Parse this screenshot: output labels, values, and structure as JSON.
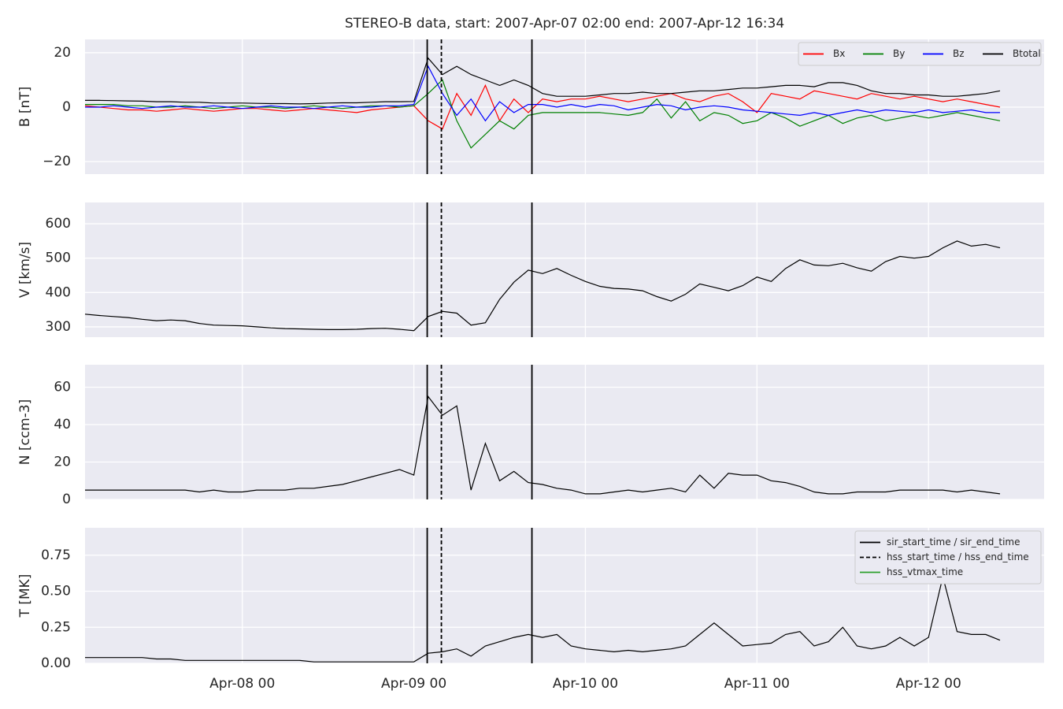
{
  "chart_data": [
    {
      "type": "line",
      "title": "STEREO-B data, start: 2007-Apr-07 02:00  end: 2007-Apr-12 16:34",
      "ylabel": "B [nT]",
      "legend": "upper right",
      "legend_columns": 4,
      "x": [
        "2007-04-07T02:00",
        "2007-04-07T04:00",
        "2007-04-07T06:00",
        "2007-04-07T08:00",
        "2007-04-07T10:00",
        "2007-04-07T12:00",
        "2007-04-07T14:00",
        "2007-04-07T16:00",
        "2007-04-07T18:00",
        "2007-04-07T20:00",
        "2007-04-07T22:00",
        "2007-04-08T00:00",
        "2007-04-08T02:00",
        "2007-04-08T04:00",
        "2007-04-08T06:00",
        "2007-04-08T08:00",
        "2007-04-08T10:00",
        "2007-04-08T12:00",
        "2007-04-08T14:00",
        "2007-04-08T16:00",
        "2007-04-08T18:00",
        "2007-04-08T20:00",
        "2007-04-08T22:00",
        "2007-04-09T00:00",
        "2007-04-09T02:00",
        "2007-04-09T04:00",
        "2007-04-09T06:00",
        "2007-04-09T08:00",
        "2007-04-09T10:00",
        "2007-04-09T12:00",
        "2007-04-09T14:00",
        "2007-04-09T16:00",
        "2007-04-09T18:00",
        "2007-04-09T20:00",
        "2007-04-09T22:00",
        "2007-04-10T00:00",
        "2007-04-10T02:00",
        "2007-04-10T04:00",
        "2007-04-10T06:00",
        "2007-04-10T08:00",
        "2007-04-10T10:00",
        "2007-04-10T12:00",
        "2007-04-10T14:00",
        "2007-04-10T16:00",
        "2007-04-10T18:00",
        "2007-04-10T20:00",
        "2007-04-10T22:00",
        "2007-04-11T00:00",
        "2007-04-11T02:00",
        "2007-04-11T04:00",
        "2007-04-11T06:00",
        "2007-04-11T08:00",
        "2007-04-11T10:00",
        "2007-04-11T12:00",
        "2007-04-11T14:00",
        "2007-04-11T16:00",
        "2007-04-11T18:00",
        "2007-04-11T20:00",
        "2007-04-11T22:00",
        "2007-04-12T00:00",
        "2007-04-12T02:00",
        "2007-04-12T04:00",
        "2007-04-12T06:00",
        "2007-04-12T08:00",
        "2007-04-12T10:00"
      ],
      "series": [
        {
          "name": "Bx",
          "color": "#ff0000",
          "values": [
            0.5,
            0,
            -0.5,
            -1,
            -1,
            -1.5,
            -1,
            -0.5,
            -1,
            -1.5,
            -1,
            -0.5,
            -0.5,
            -1,
            -1.5,
            -1,
            -0.5,
            -1,
            -1.5,
            -2,
            -1,
            -0.5,
            0,
            0.5,
            -5,
            -8,
            5,
            -3,
            8,
            -5,
            3,
            -2,
            3,
            2,
            3,
            3,
            4,
            3,
            2,
            3,
            4,
            5,
            3,
            2,
            4,
            5,
            2,
            -2,
            5,
            4,
            3,
            6,
            5,
            4,
            3,
            5,
            4,
            3,
            4,
            3,
            2,
            3,
            2,
            1,
            0
          ]
        },
        {
          "name": "By",
          "color": "#008000",
          "values": [
            1,
            1,
            1,
            0.5,
            0.5,
            0,
            0,
            0.5,
            0,
            -0.5,
            0,
            0.5,
            0,
            0,
            -0.5,
            0,
            0.5,
            0,
            -0.5,
            0,
            0.5,
            0.5,
            0,
            0.5,
            5,
            10,
            -5,
            -15,
            -10,
            -5,
            -8,
            -3,
            -2,
            -2,
            -2,
            -2,
            -2,
            -2.5,
            -3,
            -2,
            3,
            -4,
            2,
            -5,
            -2,
            -3,
            -6,
            -5,
            -2,
            -4,
            -7,
            -5,
            -3,
            -6,
            -4,
            -3,
            -5,
            -4,
            -3,
            -4,
            -3,
            -2,
            -3,
            -4,
            -5
          ]
        },
        {
          "name": "Bz",
          "color": "#0000ff",
          "values": [
            0,
            0,
            0.5,
            0,
            -0.5,
            0,
            0.5,
            0,
            0,
            0.5,
            0,
            -0.5,
            0,
            0.5,
            0,
            0,
            -0.5,
            0,
            0.5,
            0,
            0,
            0.5,
            0.5,
            1,
            15,
            5,
            -3,
            3,
            -5,
            2,
            -2,
            1,
            1,
            0,
            1,
            0,
            1,
            0.5,
            -1,
            0,
            1,
            0.5,
            -1,
            0,
            0.5,
            0,
            -1,
            -1.5,
            -2,
            -2.5,
            -3,
            -2,
            -3,
            -2,
            -1,
            -2,
            -1,
            -1.5,
            -2,
            -1,
            -2,
            -1.5,
            -1,
            -2,
            -2
          ]
        },
        {
          "name": "Btotal",
          "color": "#000000",
          "values": [
            2.5,
            2.5,
            2.4,
            2.3,
            2.2,
            2.0,
            2.0,
            1.8,
            1.8,
            1.5,
            1.5,
            1.5,
            1.4,
            1.3,
            1.3,
            1.2,
            1.3,
            1.5,
            1.6,
            1.6,
            1.8,
            2.0,
            2.0,
            2.1,
            18,
            12,
            15,
            12,
            10,
            8,
            10,
            8,
            5,
            4,
            4,
            4,
            4.5,
            5,
            5,
            5.5,
            5,
            5,
            5.5,
            6,
            6,
            6.5,
            7,
            7,
            7.5,
            8,
            8,
            7.5,
            9,
            9,
            8,
            6,
            5,
            5,
            4.5,
            4.5,
            4,
            4,
            4.5,
            5,
            6
          ]
        }
      ],
      "ylim": [
        -24.6,
        24.9
      ],
      "yticks": [
        {
          "value": -20,
          "label": "−20"
        },
        0,
        20
      ],
      "xlim": [
        "2007-04-07T02:00",
        "2007-04-12T16:10"
      ],
      "grid": true
    },
    {
      "type": "line",
      "ylabel": "V [km/s]",
      "x": [
        "2007-04-07T02:00",
        "2007-04-07T04:00",
        "2007-04-07T06:00",
        "2007-04-07T08:00",
        "2007-04-07T10:00",
        "2007-04-07T12:00",
        "2007-04-07T14:00",
        "2007-04-07T16:00",
        "2007-04-07T18:00",
        "2007-04-07T20:00",
        "2007-04-07T22:00",
        "2007-04-08T00:00",
        "2007-04-08T02:00",
        "2007-04-08T04:00",
        "2007-04-08T06:00",
        "2007-04-08T08:00",
        "2007-04-08T10:00",
        "2007-04-08T12:00",
        "2007-04-08T14:00",
        "2007-04-08T16:00",
        "2007-04-08T18:00",
        "2007-04-08T20:00",
        "2007-04-08T22:00",
        "2007-04-09T00:00",
        "2007-04-09T02:00",
        "2007-04-09T04:00",
        "2007-04-09T06:00",
        "2007-04-09T08:00",
        "2007-04-09T10:00",
        "2007-04-09T12:00",
        "2007-04-09T14:00",
        "2007-04-09T16:00",
        "2007-04-09T18:00",
        "2007-04-09T20:00",
        "2007-04-09T22:00",
        "2007-04-10T00:00",
        "2007-04-10T02:00",
        "2007-04-10T04:00",
        "2007-04-10T06:00",
        "2007-04-10T08:00",
        "2007-04-10T10:00",
        "2007-04-10T12:00",
        "2007-04-10T14:00",
        "2007-04-10T16:00",
        "2007-04-10T18:00",
        "2007-04-10T20:00",
        "2007-04-10T22:00",
        "2007-04-11T00:00",
        "2007-04-11T02:00",
        "2007-04-11T04:00",
        "2007-04-11T06:00",
        "2007-04-11T08:00",
        "2007-04-11T10:00",
        "2007-04-11T12:00",
        "2007-04-11T14:00",
        "2007-04-11T16:00",
        "2007-04-11T18:00",
        "2007-04-11T20:00",
        "2007-04-11T22:00",
        "2007-04-12T00:00",
        "2007-04-12T02:00",
        "2007-04-12T04:00",
        "2007-04-12T06:00",
        "2007-04-12T08:00",
        "2007-04-12T10:00"
      ],
      "series": [
        {
          "color": "#000000",
          "values": [
            337,
            333,
            330,
            327,
            322,
            318,
            320,
            318,
            310,
            305,
            304,
            303,
            300,
            297,
            295,
            294,
            293,
            292,
            292,
            293,
            295,
            296,
            293,
            289,
            330,
            345,
            340,
            305,
            312,
            380,
            430,
            465,
            455,
            470,
            450,
            432,
            418,
            412,
            410,
            405,
            388,
            375,
            395,
            425,
            415,
            405,
            420,
            445,
            432,
            470,
            495,
            480,
            478,
            485,
            472,
            462,
            490,
            505,
            500,
            505,
            530,
            550,
            535,
            540,
            530
          ]
        }
      ],
      "ylim": [
        270,
        662
      ],
      "yticks": [
        300,
        400,
        500,
        600
      ],
      "xlim": [
        "2007-04-07T02:00",
        "2007-04-12T16:10"
      ],
      "grid": true
    },
    {
      "type": "line",
      "ylabel": "N [ccm-3]",
      "x": [
        "2007-04-07T02:00",
        "2007-04-07T04:00",
        "2007-04-07T06:00",
        "2007-04-07T08:00",
        "2007-04-07T10:00",
        "2007-04-07T12:00",
        "2007-04-07T14:00",
        "2007-04-07T16:00",
        "2007-04-07T18:00",
        "2007-04-07T20:00",
        "2007-04-07T22:00",
        "2007-04-08T00:00",
        "2007-04-08T02:00",
        "2007-04-08T04:00",
        "2007-04-08T06:00",
        "2007-04-08T08:00",
        "2007-04-08T10:00",
        "2007-04-08T12:00",
        "2007-04-08T14:00",
        "2007-04-08T16:00",
        "2007-04-08T18:00",
        "2007-04-08T20:00",
        "2007-04-08T22:00",
        "2007-04-09T00:00",
        "2007-04-09T02:00",
        "2007-04-09T04:00",
        "2007-04-09T06:00",
        "2007-04-09T08:00",
        "2007-04-09T10:00",
        "2007-04-09T12:00",
        "2007-04-09T14:00",
        "2007-04-09T16:00",
        "2007-04-09T18:00",
        "2007-04-09T20:00",
        "2007-04-09T22:00",
        "2007-04-10T00:00",
        "2007-04-10T02:00",
        "2007-04-10T04:00",
        "2007-04-10T06:00",
        "2007-04-10T08:00",
        "2007-04-10T10:00",
        "2007-04-10T12:00",
        "2007-04-10T14:00",
        "2007-04-10T16:00",
        "2007-04-10T18:00",
        "2007-04-10T20:00",
        "2007-04-10T22:00",
        "2007-04-11T00:00",
        "2007-04-11T02:00",
        "2007-04-11T04:00",
        "2007-04-11T06:00",
        "2007-04-11T08:00",
        "2007-04-11T10:00",
        "2007-04-11T12:00",
        "2007-04-11T14:00",
        "2007-04-11T16:00",
        "2007-04-11T18:00",
        "2007-04-11T20:00",
        "2007-04-11T22:00",
        "2007-04-12T00:00",
        "2007-04-12T02:00",
        "2007-04-12T04:00",
        "2007-04-12T06:00",
        "2007-04-12T08:00",
        "2007-04-12T10:00"
      ],
      "series": [
        {
          "color": "#000000",
          "values": [
            5,
            5,
            5,
            5,
            5,
            5,
            5,
            5,
            4,
            5,
            4,
            4,
            5,
            5,
            5,
            6,
            6,
            7,
            8,
            10,
            12,
            14,
            16,
            13,
            55,
            45,
            50,
            5,
            30,
            10,
            15,
            9,
            8,
            6,
            5,
            3,
            3,
            4,
            5,
            4,
            5,
            6,
            4,
            13,
            6,
            14,
            13,
            13,
            10,
            9,
            7,
            4,
            3,
            3,
            4,
            4,
            4,
            5,
            5,
            5,
            5,
            4,
            5,
            4,
            3
          ]
        }
      ],
      "ylim": [
        0,
        72
      ],
      "yticks": [
        0,
        20,
        40,
        60
      ],
      "xlim": [
        "2007-04-07T02:00",
        "2007-04-12T16:10"
      ],
      "grid": true
    },
    {
      "type": "line",
      "ylabel": "T [MK]",
      "legend": "upper right",
      "legend_columns": 1,
      "x": [
        "2007-04-07T02:00",
        "2007-04-07T04:00",
        "2007-04-07T06:00",
        "2007-04-07T08:00",
        "2007-04-07T10:00",
        "2007-04-07T12:00",
        "2007-04-07T14:00",
        "2007-04-07T16:00",
        "2007-04-07T18:00",
        "2007-04-07T20:00",
        "2007-04-07T22:00",
        "2007-04-08T00:00",
        "2007-04-08T02:00",
        "2007-04-08T04:00",
        "2007-04-08T06:00",
        "2007-04-08T08:00",
        "2007-04-08T10:00",
        "2007-04-08T12:00",
        "2007-04-08T14:00",
        "2007-04-08T16:00",
        "2007-04-08T18:00",
        "2007-04-08T20:00",
        "2007-04-08T22:00",
        "2007-04-09T00:00",
        "2007-04-09T02:00",
        "2007-04-09T04:00",
        "2007-04-09T06:00",
        "2007-04-09T08:00",
        "2007-04-09T10:00",
        "2007-04-09T12:00",
        "2007-04-09T14:00",
        "2007-04-09T16:00",
        "2007-04-09T18:00",
        "2007-04-09T20:00",
        "2007-04-09T22:00",
        "2007-04-10T00:00",
        "2007-04-10T02:00",
        "2007-04-10T04:00",
        "2007-04-10T06:00",
        "2007-04-10T08:00",
        "2007-04-10T10:00",
        "2007-04-10T12:00",
        "2007-04-10T14:00",
        "2007-04-10T16:00",
        "2007-04-10T18:00",
        "2007-04-10T20:00",
        "2007-04-10T22:00",
        "2007-04-11T00:00",
        "2007-04-11T02:00",
        "2007-04-11T04:00",
        "2007-04-11T06:00",
        "2007-04-11T08:00",
        "2007-04-11T10:00",
        "2007-04-11T12:00",
        "2007-04-11T14:00",
        "2007-04-11T16:00",
        "2007-04-11T18:00",
        "2007-04-11T20:00",
        "2007-04-11T22:00",
        "2007-04-12T00:00",
        "2007-04-12T02:00",
        "2007-04-12T04:00",
        "2007-04-12T06:00",
        "2007-04-12T08:00",
        "2007-04-12T10:00"
      ],
      "series": [
        {
          "color": "#000000",
          "values": [
            0.04,
            0.04,
            0.04,
            0.04,
            0.04,
            0.03,
            0.03,
            0.02,
            0.02,
            0.02,
            0.02,
            0.02,
            0.02,
            0.02,
            0.02,
            0.02,
            0.01,
            0.01,
            0.01,
            0.01,
            0.01,
            0.01,
            0.01,
            0.01,
            0.07,
            0.08,
            0.1,
            0.05,
            0.12,
            0.15,
            0.18,
            0.2,
            0.18,
            0.2,
            0.12,
            0.1,
            0.09,
            0.08,
            0.09,
            0.08,
            0.09,
            0.1,
            0.12,
            0.2,
            0.28,
            0.2,
            0.12,
            0.13,
            0.14,
            0.2,
            0.22,
            0.12,
            0.15,
            0.25,
            0.12,
            0.1,
            0.12,
            0.18,
            0.12,
            0.18,
            0.6,
            0.22,
            0.2,
            0.2,
            0.16
          ]
        }
      ],
      "ylim": [
        0,
        0.94
      ],
      "yticks": [
        {
          "value": 0,
          "label": "0.00"
        },
        {
          "value": 0.25,
          "label": "0.25"
        },
        {
          "value": 0.5,
          "label": "0.50"
        },
        {
          "value": 0.75,
          "label": "0.75"
        }
      ],
      "xlim": [
        "2007-04-07T02:00",
        "2007-04-12T16:10"
      ],
      "xticks": [
        {
          "value": "2007-04-08T00:00",
          "label": "Apr-08 00"
        },
        {
          "value": "2007-04-09T00:00",
          "label": "Apr-09 00"
        },
        {
          "value": "2007-04-10T00:00",
          "label": "Apr-10 00"
        },
        {
          "value": "2007-04-11T00:00",
          "label": "Apr-11 00"
        },
        {
          "value": "2007-04-12T00:00",
          "label": "Apr-12 00"
        }
      ],
      "grid": true,
      "vlines": [
        {
          "name": "sir_start_time / sir_end_time",
          "color": "#000000",
          "dash": false,
          "times": [
            "2007-04-09T01:52",
            "2007-04-09T16:31"
          ]
        },
        {
          "name": "hss_start_time / hss_end_time",
          "color": "#000000",
          "dash": true,
          "times": [
            "2007-04-09T03:51"
          ]
        },
        {
          "name": "hss_vtmax_time",
          "color": "#2ca02c",
          "dash": false,
          "times": []
        }
      ]
    }
  ]
}
